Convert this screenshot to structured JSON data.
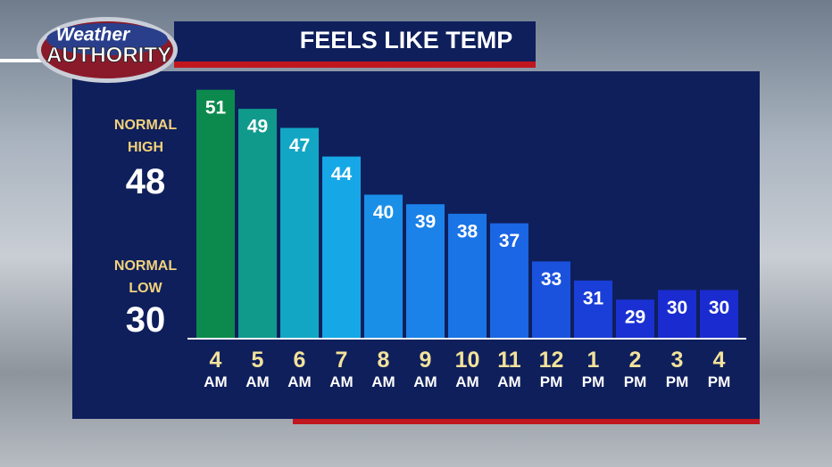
{
  "logo": {
    "line1": "Weather",
    "line2": "AUTHORITY"
  },
  "chart_data": {
    "type": "bar",
    "title": "FEELS LIKE TEMP",
    "categories": [
      "4 AM",
      "5 AM",
      "6 AM",
      "7 AM",
      "8 AM",
      "9 AM",
      "10 AM",
      "11 AM",
      "12 PM",
      "1 PM",
      "2 PM",
      "3 PM",
      "4 PM"
    ],
    "values": [
      51,
      49,
      47,
      44,
      40,
      39,
      38,
      37,
      33,
      31,
      29,
      30,
      30
    ],
    "colors": [
      "#0c8a4e",
      "#0f9a8c",
      "#12a6c4",
      "#16a8e6",
      "#1a8fe8",
      "#1a82e8",
      "#1a74e6",
      "#1a66e4",
      "#1a52de",
      "#1a3ed8",
      "#1a30d2",
      "#1a2ccf",
      "#1a2ccf"
    ],
    "ylim": [
      25,
      52
    ],
    "normals": [
      {
        "label": "NORMAL HIGH",
        "value": 48
      },
      {
        "label": "NORMAL LOW",
        "value": 30
      }
    ]
  }
}
